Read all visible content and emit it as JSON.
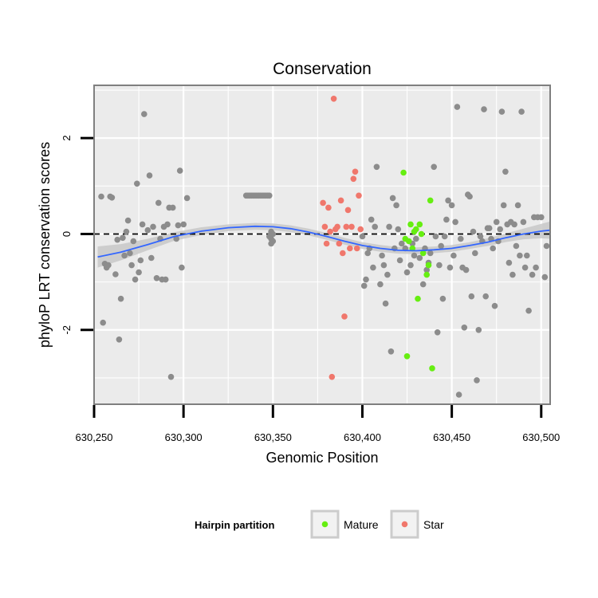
{
  "chart_data": {
    "type": "scatter",
    "title": "Conservation",
    "xlabel": "Genomic Position",
    "ylabel": "phyloP LRT conservation scores",
    "xlim": [
      630250,
      630505
    ],
    "ylim": [
      -3.55,
      3.1
    ],
    "x_ticks": [
      630250,
      630300,
      630350,
      630400,
      630450,
      630500
    ],
    "x_tick_labels": [
      "630,250",
      "630,300",
      "630,350",
      "630,400",
      "630,450",
      "630,500"
    ],
    "y_ticks": [
      -2,
      0,
      2
    ],
    "y_tick_labels": [
      "-2",
      "0",
      "2"
    ],
    "reference_line": {
      "y": 0,
      "style": "dashed"
    },
    "grid": true,
    "colors": {
      "other": "#8c8c8c",
      "Mature": "#66ee11",
      "Star": "#f0776c",
      "smooth": "#3366ff",
      "band": "#c8c8c8",
      "panel": "#ebebeb"
    },
    "legend": {
      "title": "Hairpin partition",
      "position": "bottom",
      "entries": [
        {
          "label": "Mature",
          "color": "#66ee11"
        },
        {
          "label": "Star",
          "color": "#f0776c"
        }
      ]
    },
    "series": [
      {
        "name": "Other",
        "points": [
          [
            630254,
            0.78
          ],
          [
            630255,
            -1.85
          ],
          [
            630256,
            -0.62
          ],
          [
            630257,
            -0.7
          ],
          [
            630258,
            -0.65
          ],
          [
            630259,
            0.78
          ],
          [
            630260,
            0.76
          ],
          [
            630262,
            -0.84
          ],
          [
            630263,
            -0.12
          ],
          [
            630264,
            -2.2
          ],
          [
            630265,
            -1.35
          ],
          [
            630266,
            -0.08
          ],
          [
            630267,
            -0.45
          ],
          [
            630268,
            0.05
          ],
          [
            630269,
            0.28
          ],
          [
            630270,
            -0.4
          ],
          [
            630271,
            -0.65
          ],
          [
            630272,
            -0.15
          ],
          [
            630273,
            -0.95
          ],
          [
            630274,
            1.05
          ],
          [
            630275,
            -0.8
          ],
          [
            630276,
            -0.55
          ],
          [
            630277,
            0.2
          ],
          [
            630278,
            2.5
          ],
          [
            630280,
            0.08
          ],
          [
            630281,
            1.22
          ],
          [
            630282,
            -0.5
          ],
          [
            630283,
            0.15
          ],
          [
            630285,
            -0.92
          ],
          [
            630286,
            0.65
          ],
          [
            630287,
            -0.1
          ],
          [
            630288,
            -0.95
          ],
          [
            630289,
            0.15
          ],
          [
            630290,
            -0.95
          ],
          [
            630291,
            0.2
          ],
          [
            630292,
            0.55
          ],
          [
            630293,
            -2.98
          ],
          [
            630294,
            0.55
          ],
          [
            630296,
            -0.1
          ],
          [
            630297,
            0.18
          ],
          [
            630298,
            1.32
          ],
          [
            630299,
            -0.7
          ],
          [
            630300,
            0.2
          ],
          [
            630302,
            0.75
          ],
          [
            630335,
            0.8
          ],
          [
            630336,
            0.8
          ],
          [
            630337,
            0.8
          ],
          [
            630338,
            0.8
          ],
          [
            630339,
            0.8
          ],
          [
            630340,
            0.8
          ],
          [
            630341,
            0.8
          ],
          [
            630342,
            0.8
          ],
          [
            630343,
            0.8
          ],
          [
            630344,
            0.8
          ],
          [
            630345,
            0.8
          ],
          [
            630346,
            0.8
          ],
          [
            630347,
            0.8
          ],
          [
            630348,
            0.8
          ],
          [
            630348,
            -0.05
          ],
          [
            630349,
            -0.1
          ],
          [
            630350,
            -0.15
          ],
          [
            630349,
            -0.2
          ],
          [
            630350,
            0
          ],
          [
            630349,
            0.05
          ],
          [
            630400,
            -0.05
          ],
          [
            630401,
            -1.08
          ],
          [
            630402,
            -0.95
          ],
          [
            630403,
            -0.4
          ],
          [
            630404,
            -0.3
          ],
          [
            630405,
            0.3
          ],
          [
            630406,
            -0.7
          ],
          [
            630407,
            0.15
          ],
          [
            630408,
            1.4
          ],
          [
            630410,
            -1.05
          ],
          [
            630411,
            -0.45
          ],
          [
            630412,
            -0.65
          ],
          [
            630413,
            -1.45
          ],
          [
            630414,
            -0.85
          ],
          [
            630415,
            0.15
          ],
          [
            630416,
            -2.45
          ],
          [
            630417,
            0.75
          ],
          [
            630418,
            -0.3
          ],
          [
            630419,
            0.6
          ],
          [
            630420,
            0.1
          ],
          [
            630421,
            -0.55
          ],
          [
            630422,
            -0.2
          ],
          [
            630424,
            -0.3
          ],
          [
            630425,
            -0.8
          ],
          [
            630427,
            -0.65
          ],
          [
            630428,
            -0.2
          ],
          [
            630429,
            -0.45
          ],
          [
            630430,
            -0.1
          ],
          [
            630432,
            -0.5
          ],
          [
            630434,
            -1.05
          ],
          [
            630435,
            -0.3
          ],
          [
            630436,
            -0.75
          ],
          [
            630437,
            -0.6
          ],
          [
            630438,
            -0.4
          ],
          [
            630440,
            1.4
          ],
          [
            630441,
            -0.05
          ],
          [
            630442,
            -2.05
          ],
          [
            630443,
            -0.65
          ],
          [
            630444,
            -0.25
          ],
          [
            630445,
            -1.35
          ],
          [
            630446,
            -0.05
          ],
          [
            630447,
            0.3
          ],
          [
            630448,
            0.7
          ],
          [
            630449,
            -0.7
          ],
          [
            630450,
            0.6
          ],
          [
            630451,
            -0.45
          ],
          [
            630452,
            0.25
          ],
          [
            630453,
            2.65
          ],
          [
            630454,
            -3.35
          ],
          [
            630455,
            -0.1
          ],
          [
            630456,
            -0.7
          ],
          [
            630457,
            -1.95
          ],
          [
            630458,
            -0.75
          ],
          [
            630459,
            0.82
          ],
          [
            630460,
            0.78
          ],
          [
            630461,
            -1.3
          ],
          [
            630462,
            0.05
          ],
          [
            630463,
            -0.4
          ],
          [
            630464,
            -3.05
          ],
          [
            630465,
            -2.0
          ],
          [
            630466,
            -0.05
          ],
          [
            630467,
            -0.15
          ],
          [
            630468,
            2.6
          ],
          [
            630469,
            -1.3
          ],
          [
            630470,
            0.12
          ],
          [
            630471,
            0.12
          ],
          [
            630472,
            -0.1
          ],
          [
            630473,
            -0.3
          ],
          [
            630474,
            -1.5
          ],
          [
            630475,
            0.25
          ],
          [
            630476,
            -0.15
          ],
          [
            630477,
            0.1
          ],
          [
            630478,
            2.55
          ],
          [
            630479,
            0.6
          ],
          [
            630480,
            1.3
          ],
          [
            630481,
            0.2
          ],
          [
            630482,
            -0.6
          ],
          [
            630483,
            0.25
          ],
          [
            630484,
            -0.85
          ],
          [
            630485,
            0.2
          ],
          [
            630486,
            -0.25
          ],
          [
            630487,
            0.6
          ],
          [
            630488,
            -0.45
          ],
          [
            630489,
            2.55
          ],
          [
            630490,
            0.25
          ],
          [
            630491,
            -0.7
          ],
          [
            630492,
            -0.45
          ],
          [
            630493,
            -1.6
          ],
          [
            630495,
            -0.85
          ],
          [
            630496,
            0.35
          ],
          [
            630497,
            -0.7
          ],
          [
            630498,
            0.35
          ],
          [
            630500,
            0.35
          ],
          [
            630502,
            -0.9
          ],
          [
            630503,
            -0.25
          ]
        ]
      },
      {
        "name": "Mature",
        "points": [
          [
            630423,
            1.28
          ],
          [
            630424,
            -0.1
          ],
          [
            630425,
            -2.55
          ],
          [
            630426,
            -0.15
          ],
          [
            630427,
            0.2
          ],
          [
            630428,
            -0.3
          ],
          [
            630429,
            0.05
          ],
          [
            630430,
            0.1
          ],
          [
            630431,
            -1.35
          ],
          [
            630432,
            0.2
          ],
          [
            630433,
            0.0
          ],
          [
            630434,
            -0.4
          ],
          [
            630436,
            -0.85
          ],
          [
            630437,
            -0.65
          ],
          [
            630438,
            0.7
          ],
          [
            630439,
            -2.8
          ]
        ]
      },
      {
        "name": "Star",
        "points": [
          [
            630378,
            0.65
          ],
          [
            630379,
            0.15
          ],
          [
            630380,
            -0.2
          ],
          [
            630381,
            0.55
          ],
          [
            630382,
            0.05
          ],
          [
            630383,
            -2.98
          ],
          [
            630384,
            2.82
          ],
          [
            630385,
            0.1
          ],
          [
            630386,
            0.15
          ],
          [
            630387,
            -0.2
          ],
          [
            630388,
            0.7
          ],
          [
            630389,
            -0.4
          ],
          [
            630390,
            -1.72
          ],
          [
            630391,
            0.15
          ],
          [
            630392,
            0.5
          ],
          [
            630393,
            -0.3
          ],
          [
            630394,
            0.15
          ],
          [
            630395,
            1.15
          ],
          [
            630396,
            1.3
          ],
          [
            630397,
            -0.3
          ],
          [
            630398,
            0.8
          ],
          [
            630399,
            0.1
          ]
        ]
      }
    ],
    "smooth": {
      "method": "loess",
      "x": [
        630252,
        630265,
        630280,
        630295,
        630310,
        630325,
        630340,
        630350,
        630360,
        630370,
        630380,
        630390,
        630400,
        630410,
        630420,
        630430,
        630440,
        630450,
        630460,
        630470,
        630480,
        630490,
        630500,
        630505
      ],
      "y": [
        -0.48,
        -0.38,
        -0.22,
        -0.05,
        0.06,
        0.13,
        0.16,
        0.15,
        0.11,
        0.04,
        -0.05,
        -0.15,
        -0.24,
        -0.3,
        -0.34,
        -0.35,
        -0.33,
        -0.3,
        -0.24,
        -0.17,
        -0.08,
        0.0,
        0.06,
        0.08
      ],
      "se": [
        0.22,
        0.17,
        0.12,
        0.09,
        0.08,
        0.07,
        0.07,
        0.07,
        0.07,
        0.07,
        0.07,
        0.07,
        0.07,
        0.07,
        0.07,
        0.07,
        0.07,
        0.07,
        0.07,
        0.08,
        0.09,
        0.11,
        0.15,
        0.18
      ]
    }
  }
}
